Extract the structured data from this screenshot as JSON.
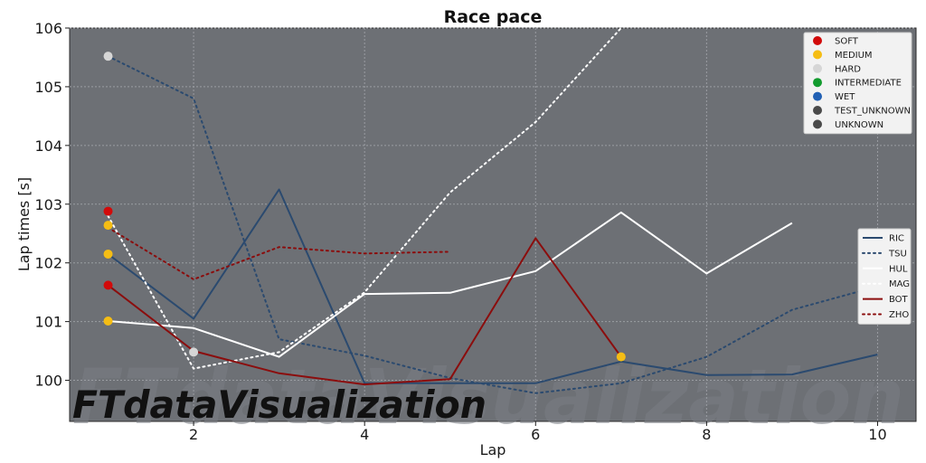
{
  "chart_data": {
    "type": "line",
    "title": "Race pace",
    "xlabel": "Lap",
    "ylabel": "Lap times [s]",
    "xlim": [
      0.55,
      10.45
    ],
    "ylim": [
      99.3,
      106
    ],
    "xticks": [
      2,
      4,
      6,
      8,
      10
    ],
    "yticks": [
      100,
      101,
      102,
      103,
      104,
      105,
      106
    ],
    "grid": true,
    "background": "#6d7075",
    "series": [
      {
        "name": "RIC",
        "color": "#2b4a6f",
        "style": "solid",
        "x": [
          1,
          2,
          3,
          4,
          5,
          6,
          7,
          8,
          9,
          10
        ],
        "y": [
          102.15,
          101.05,
          103.25,
          99.95,
          99.95,
          99.95,
          100.32,
          100.09,
          100.1,
          100.44
        ]
      },
      {
        "name": "TSU",
        "color": "#2b4a6f",
        "style": "dotted",
        "x": [
          1,
          2,
          3,
          4,
          5,
          6,
          7,
          8,
          9,
          10
        ],
        "y": [
          105.52,
          104.8,
          100.7,
          100.42,
          100.04,
          99.78,
          99.95,
          100.4,
          101.2,
          101.6
        ]
      },
      {
        "name": "HUL",
        "color": "#ffffff",
        "style": "solid",
        "x": [
          1,
          2,
          3,
          4,
          5,
          6,
          7,
          8,
          9
        ],
        "y": [
          101.01,
          100.89,
          100.4,
          101.47,
          101.49,
          101.86,
          102.86,
          101.82,
          102.68
        ]
      },
      {
        "name": "MAG",
        "color": "#ffffff",
        "style": "dotted",
        "x": [
          1,
          2,
          3,
          4,
          5,
          6,
          7
        ],
        "y": [
          102.8,
          100.2,
          100.48,
          101.5,
          103.2,
          104.4,
          106.0
        ]
      },
      {
        "name": "BOT",
        "color": "#8b0d0d",
        "style": "solid",
        "x": [
          1,
          2,
          3,
          4,
          5,
          6,
          7
        ],
        "y": [
          101.62,
          100.5,
          100.12,
          99.93,
          100.02,
          102.42,
          100.4
        ]
      },
      {
        "name": "ZHO",
        "color": "#8b0d0d",
        "style": "dotted",
        "x": [
          1,
          2,
          3,
          4,
          5
        ],
        "y": [
          102.6,
          101.72,
          102.27,
          102.16,
          102.19
        ]
      }
    ],
    "tyre_markers": [
      {
        "x": 1,
        "y": 105.52,
        "compound": "HARD"
      },
      {
        "x": 1,
        "y": 102.88,
        "compound": "SOFT"
      },
      {
        "x": 1,
        "y": 102.64,
        "compound": "MEDIUM"
      },
      {
        "x": 1,
        "y": 102.15,
        "compound": "MEDIUM"
      },
      {
        "x": 1,
        "y": 101.62,
        "compound": "SOFT"
      },
      {
        "x": 1,
        "y": 101.01,
        "compound": "MEDIUM"
      },
      {
        "x": 2,
        "y": 100.48,
        "compound": "HARD"
      },
      {
        "x": 7,
        "y": 100.4,
        "compound": "MEDIUM"
      }
    ],
    "tyre_legend": [
      {
        "label": "SOFT",
        "color": "#d20a0a"
      },
      {
        "label": "MEDIUM",
        "color": "#f5bd14"
      },
      {
        "label": "HARD",
        "color": "#d6d6d6"
      },
      {
        "label": "INTERMEDIATE",
        "color": "#129b2e"
      },
      {
        "label": "WET",
        "color": "#2160b4"
      },
      {
        "label": "TEST_UNKNOWN",
        "color": "#4a4a4a"
      },
      {
        "label": "UNKNOWN",
        "color": "#4a4a4a"
      }
    ],
    "tyre_legend_position": "top-right",
    "driver_legend_position": "center-right"
  },
  "watermark": "FTdataVisualization"
}
